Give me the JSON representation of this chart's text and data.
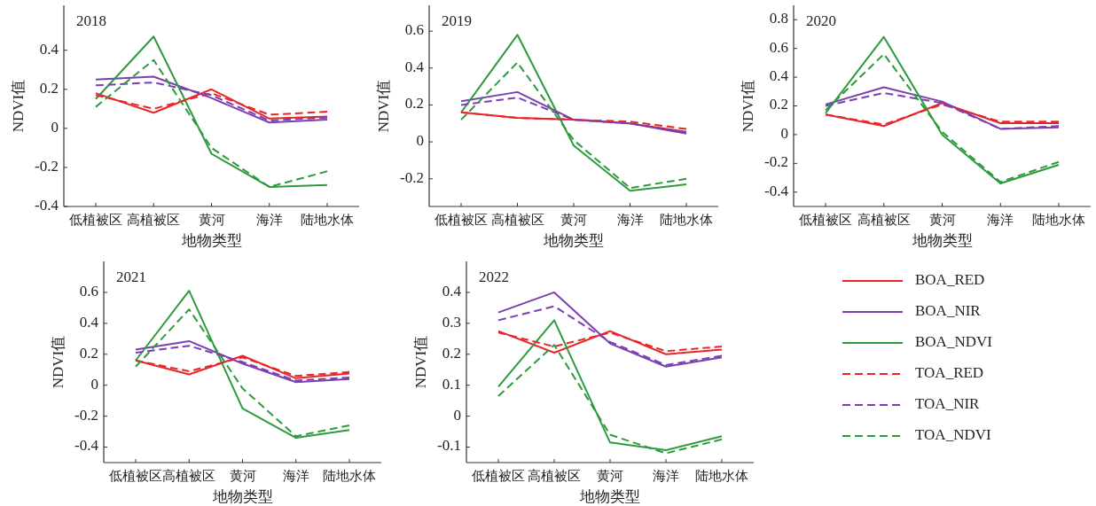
{
  "chart_data": [
    {
      "type": "line",
      "title": "2018",
      "xlabel": "地物类型",
      "ylabel": "NDVI值",
      "categories": [
        "低植被区",
        "高植被区",
        "黄河",
        "海洋",
        "陆地水体"
      ],
      "ylim": [
        -0.4,
        0.63
      ],
      "yticks": [
        -0.4,
        -0.2,
        0,
        0.2,
        0.4
      ],
      "series": [
        {
          "color": "#e8262a",
          "line_style": "solid",
          "values": [
            0.18,
            0.08,
            0.2,
            0.05,
            0.06
          ]
        },
        {
          "color": "#7b3fb0",
          "line_style": "solid",
          "values": [
            0.25,
            0.265,
            0.155,
            0.03,
            0.045
          ]
        },
        {
          "color": "#2e9a3e",
          "line_style": "solid",
          "values": [
            0.15,
            0.47,
            -0.13,
            -0.3,
            -0.29
          ]
        },
        {
          "color": "#e8262a",
          "line_style": "dashed",
          "values": [
            0.17,
            0.1,
            0.18,
            0.07,
            0.085
          ]
        },
        {
          "color": "#7b3fb0",
          "line_style": "dashed",
          "values": [
            0.22,
            0.235,
            0.17,
            0.04,
            0.055
          ]
        },
        {
          "color": "#2e9a3e",
          "line_style": "dashed",
          "values": [
            0.11,
            0.35,
            -0.1,
            -0.3,
            -0.22
          ]
        }
      ]
    },
    {
      "type": "line",
      "title": "2019",
      "xlabel": "地物类型",
      "ylabel": "NDVI值",
      "categories": [
        "低植被区",
        "高植被区",
        "黄河",
        "海洋",
        "陆地水体"
      ],
      "ylim": [
        -0.35,
        0.74
      ],
      "yticks": [
        -0.2,
        0,
        0.2,
        0.4,
        0.6
      ],
      "series": [
        {
          "color": "#e8262a",
          "line_style": "solid",
          "values": [
            0.16,
            0.13,
            0.12,
            0.1,
            0.055
          ]
        },
        {
          "color": "#7b3fb0",
          "line_style": "solid",
          "values": [
            0.22,
            0.27,
            0.12,
            0.1,
            0.045
          ]
        },
        {
          "color": "#2e9a3e",
          "line_style": "solid",
          "values": [
            0.16,
            0.58,
            -0.02,
            -0.265,
            -0.23
          ]
        },
        {
          "color": "#e8262a",
          "line_style": "dashed",
          "values": [
            0.16,
            0.13,
            0.12,
            0.11,
            0.07
          ]
        },
        {
          "color": "#7b3fb0",
          "line_style": "dashed",
          "values": [
            0.2,
            0.24,
            0.12,
            0.1,
            0.05
          ]
        },
        {
          "color": "#2e9a3e",
          "line_style": "dashed",
          "values": [
            0.12,
            0.43,
            0.01,
            -0.25,
            -0.2
          ]
        }
      ]
    },
    {
      "type": "line",
      "title": "2020",
      "xlabel": "地物类型",
      "ylabel": "NDVI值",
      "categories": [
        "低植被区",
        "高植被区",
        "黄河",
        "海洋",
        "陆地水体"
      ],
      "ylim": [
        -0.5,
        0.9
      ],
      "yticks": [
        -0.4,
        -0.2,
        0,
        0.2,
        0.4,
        0.6,
        0.8
      ],
      "series": [
        {
          "color": "#e8262a",
          "line_style": "solid",
          "values": [
            0.14,
            0.06,
            0.22,
            0.08,
            0.08
          ]
        },
        {
          "color": "#7b3fb0",
          "line_style": "solid",
          "values": [
            0.21,
            0.33,
            0.23,
            0.04,
            0.05
          ]
        },
        {
          "color": "#2e9a3e",
          "line_style": "solid",
          "values": [
            0.15,
            0.68,
            0.0,
            -0.34,
            -0.21
          ]
        },
        {
          "color": "#e8262a",
          "line_style": "dashed",
          "values": [
            0.14,
            0.07,
            0.21,
            0.09,
            0.09
          ]
        },
        {
          "color": "#7b3fb0",
          "line_style": "dashed",
          "values": [
            0.2,
            0.29,
            0.22,
            0.04,
            0.06
          ]
        },
        {
          "color": "#2e9a3e",
          "line_style": "dashed",
          "values": [
            0.17,
            0.56,
            0.02,
            -0.33,
            -0.19
          ]
        }
      ]
    },
    {
      "type": "line",
      "title": "2021",
      "xlabel": "地物类型",
      "ylabel": "NDVI值",
      "categories": [
        "低植被区",
        "高植被区",
        "黄河",
        "海洋",
        "陆地水体"
      ],
      "ylim": [
        -0.5,
        0.8
      ],
      "yticks": [
        -0.4,
        -0.2,
        0,
        0.2,
        0.4,
        0.6
      ],
      "series": [
        {
          "color": "#e8262a",
          "line_style": "solid",
          "values": [
            0.16,
            0.07,
            0.19,
            0.045,
            0.075
          ]
        },
        {
          "color": "#7b3fb0",
          "line_style": "solid",
          "values": [
            0.23,
            0.285,
            0.14,
            0.02,
            0.04
          ]
        },
        {
          "color": "#2e9a3e",
          "line_style": "solid",
          "values": [
            0.16,
            0.61,
            -0.15,
            -0.34,
            -0.29
          ]
        },
        {
          "color": "#e8262a",
          "line_style": "dashed",
          "values": [
            0.16,
            0.09,
            0.18,
            0.06,
            0.085
          ]
        },
        {
          "color": "#7b3fb0",
          "line_style": "dashed",
          "values": [
            0.21,
            0.255,
            0.15,
            0.03,
            0.05
          ]
        },
        {
          "color": "#2e9a3e",
          "line_style": "dashed",
          "values": [
            0.12,
            0.49,
            -0.02,
            -0.33,
            -0.26
          ]
        }
      ]
    },
    {
      "type": "line",
      "title": "2022",
      "xlabel": "地物类型",
      "ylabel": "NDVI值",
      "categories": [
        "低植被区",
        "高植被区",
        "黄河",
        "海洋",
        "陆地水体"
      ],
      "ylim": [
        -0.15,
        0.5
      ],
      "yticks": [
        -0.1,
        0,
        0.1,
        0.2,
        0.3,
        0.4
      ],
      "legend": "right",
      "series": [
        {
          "name": "BOA_RED",
          "color": "#e8262a",
          "line_style": "solid",
          "values": [
            0.275,
            0.205,
            0.275,
            0.2,
            0.215
          ]
        },
        {
          "name": "BOA_NIR",
          "color": "#7b3fb0",
          "line_style": "solid",
          "values": [
            0.335,
            0.4,
            0.235,
            0.16,
            0.19
          ]
        },
        {
          "name": "BOA_NDVI",
          "color": "#2e9a3e",
          "line_style": "solid",
          "values": [
            0.095,
            0.31,
            -0.085,
            -0.11,
            -0.065
          ]
        },
        {
          "name": "TOA_RED",
          "color": "#e8262a",
          "line_style": "dashed",
          "values": [
            0.27,
            0.225,
            0.27,
            0.21,
            0.225
          ]
        },
        {
          "name": "TOA_NIR",
          "color": "#7b3fb0",
          "line_style": "dashed",
          "values": [
            0.31,
            0.355,
            0.24,
            0.165,
            0.195
          ]
        },
        {
          "name": "TOA_NDVI",
          "color": "#2e9a3e",
          "line_style": "dashed",
          "values": [
            0.065,
            0.23,
            -0.06,
            -0.12,
            -0.075
          ]
        }
      ]
    }
  ]
}
